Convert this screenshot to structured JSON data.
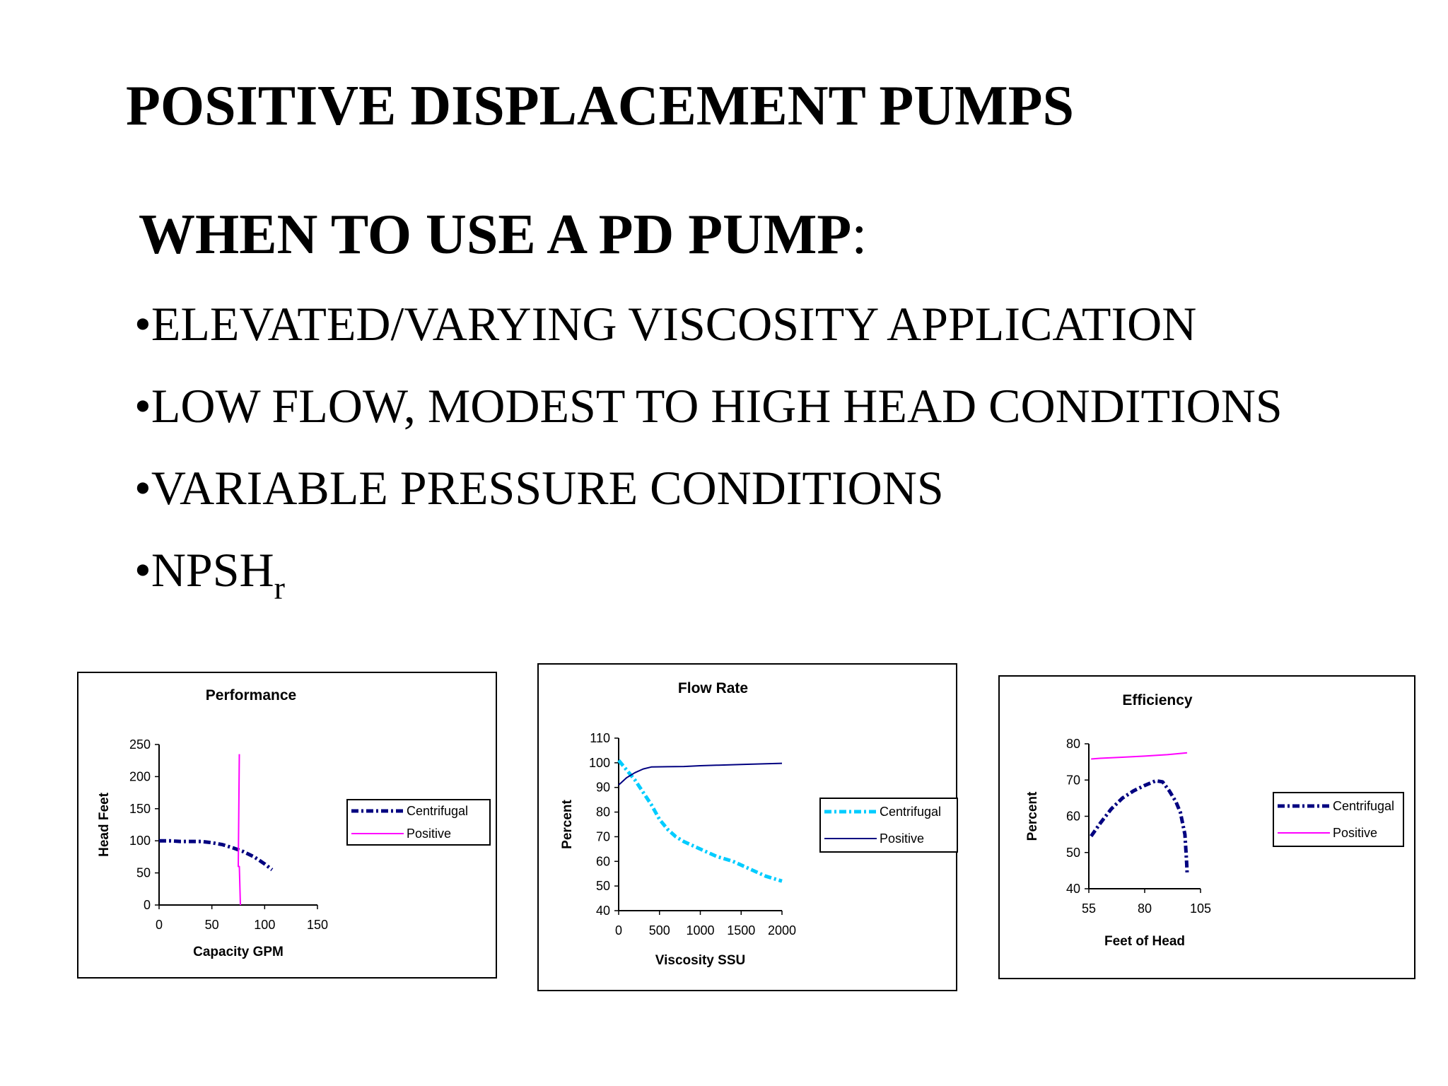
{
  "slide": {
    "title": "POSITIVE DISPLACEMENT PUMPS",
    "subtitle_strong": "WHEN TO USE A PD PUMP",
    "subtitle_colon": ":",
    "bullets": [
      {
        "bullet": "•",
        "text": "ELEVATED/VARYING VISCOSITY APPLICATION"
      },
      {
        "bullet": "•",
        "text": "LOW FLOW, MODEST TO HIGH HEAD CONDITIONS"
      },
      {
        "bullet": "•",
        "text": "VARIABLE PRESSURE CONDITIONS"
      },
      {
        "bullet": "•",
        "text": "NPSH",
        "sub": "r"
      }
    ]
  },
  "chart_data": [
    {
      "type": "line",
      "title": "Performance",
      "xlabel": "Capacity GPM",
      "ylabel": "Head Feet",
      "xlim": [
        0,
        150
      ],
      "ylim": [
        0,
        250
      ],
      "xticks": [
        "0",
        "50",
        "100",
        "150"
      ],
      "yticks": [
        "0",
        "50",
        "100",
        "150",
        "200",
        "250"
      ],
      "legend_position": "right",
      "series": [
        {
          "name": "Centrifugal",
          "color": "#000080",
          "style": "dash-dot",
          "x": [
            0,
            10,
            20,
            30,
            40,
            50,
            60,
            70,
            80,
            90,
            100,
            107
          ],
          "y": [
            100,
            100,
            99,
            99,
            99,
            97,
            94,
            89,
            83,
            75,
            64,
            55
          ]
        },
        {
          "name": "Positive",
          "color": "#ff00ff",
          "style": "solid",
          "x": [
            76,
            75,
            76,
            77
          ],
          "y": [
            235,
            60,
            60,
            0
          ]
        }
      ]
    },
    {
      "type": "line",
      "title": "Flow Rate",
      "xlabel": "Viscosity SSU",
      "ylabel": "Percent",
      "xlim": [
        0,
        2000
      ],
      "ylim": [
        40,
        110
      ],
      "xticks": [
        "0",
        "500",
        "1000",
        "1500",
        "2000"
      ],
      "yticks": [
        "40",
        "50",
        "60",
        "70",
        "80",
        "90",
        "100",
        "110"
      ],
      "legend_position": "right",
      "series": [
        {
          "name": "Centrifugal",
          "color": "#00ccff",
          "style": "dash-dot",
          "x": [
            0,
            100,
            200,
            300,
            400,
            500,
            600,
            700,
            800,
            1000,
            1200,
            1400,
            1600,
            1800,
            2000
          ],
          "y": [
            101,
            97,
            93,
            88,
            83,
            77,
            73,
            70,
            68,
            65,
            62,
            60,
            57,
            54,
            52
          ]
        },
        {
          "name": "Positive",
          "color": "#000080",
          "style": "solid",
          "x": [
            0,
            100,
            200,
            300,
            400,
            600,
            800,
            1000,
            1200,
            1500,
            1800,
            2000
          ],
          "y": [
            91,
            94,
            96,
            97.5,
            98.3,
            98.4,
            98.5,
            98.8,
            99,
            99.3,
            99.6,
            99.8
          ]
        }
      ]
    },
    {
      "type": "line",
      "title": "Efficiency",
      "xlabel": "Feet of Head",
      "ylabel": "Percent",
      "xlim": [
        55,
        105
      ],
      "ylim": [
        40,
        80
      ],
      "xticks": [
        "55",
        "80",
        "105"
      ],
      "yticks": [
        "40",
        "50",
        "60",
        "70",
        "80"
      ],
      "legend_position": "right",
      "series": [
        {
          "name": "Centrifugal",
          "color": "#000080",
          "style": "dash-dot",
          "x": [
            56,
            60,
            65,
            70,
            75,
            80,
            85,
            88,
            91,
            94,
            96,
            97,
            98,
            98.5,
            98.8,
            99
          ],
          "y": [
            54.5,
            58,
            62,
            65,
            67,
            68.5,
            69.8,
            69.5,
            67,
            64,
            61,
            58,
            55,
            50,
            47,
            44.5
          ]
        },
        {
          "name": "Positive",
          "color": "#ff00ff",
          "style": "solid",
          "x": [
            56,
            60,
            70,
            80,
            90,
            99
          ],
          "y": [
            75.8,
            76,
            76.3,
            76.6,
            77,
            77.5
          ]
        }
      ]
    }
  ]
}
